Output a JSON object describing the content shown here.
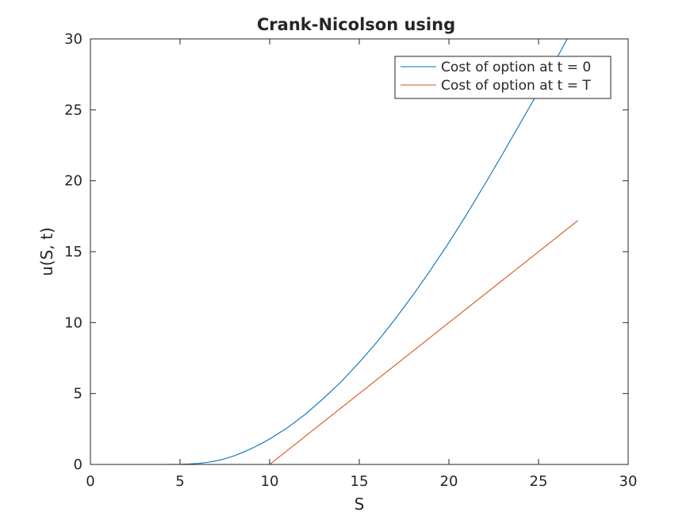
{
  "chart_data": {
    "type": "line",
    "title": "Crank-Nicolson using",
    "xlabel": "S",
    "ylabel": "u(S, t)",
    "xlim": [
      0,
      30
    ],
    "ylim": [
      0,
      30
    ],
    "xticks": [
      0,
      5,
      10,
      15,
      20,
      25,
      30
    ],
    "yticks": [
      0,
      5,
      10,
      15,
      20,
      25,
      30
    ],
    "grid": false,
    "legend_position": "top-right",
    "series": [
      {
        "name": "Cost of option at t = 0",
        "color": "#0072BD",
        "x": [
          0,
          2,
          4,
          5,
          5.5,
          6,
          6.5,
          7,
          7.5,
          8,
          8.5,
          9,
          9.5,
          10,
          11,
          12,
          13,
          14,
          15,
          16,
          17,
          18,
          19,
          20,
          21,
          22,
          23,
          24,
          25,
          26,
          26.6
        ],
        "y": [
          0,
          0,
          0,
          0.01,
          0.03,
          0.07,
          0.14,
          0.25,
          0.4,
          0.6,
          0.85,
          1.13,
          1.45,
          1.8,
          2.6,
          3.55,
          4.65,
          5.85,
          7.2,
          8.65,
          10.25,
          11.95,
          13.75,
          15.65,
          17.65,
          19.75,
          21.9,
          24.1,
          26.3,
          28.6,
          30
        ]
      },
      {
        "name": "Cost of option at t = T",
        "color": "#D95319",
        "x": [
          0,
          10,
          27.2
        ],
        "y": [
          0,
          0,
          17.2
        ]
      }
    ]
  }
}
